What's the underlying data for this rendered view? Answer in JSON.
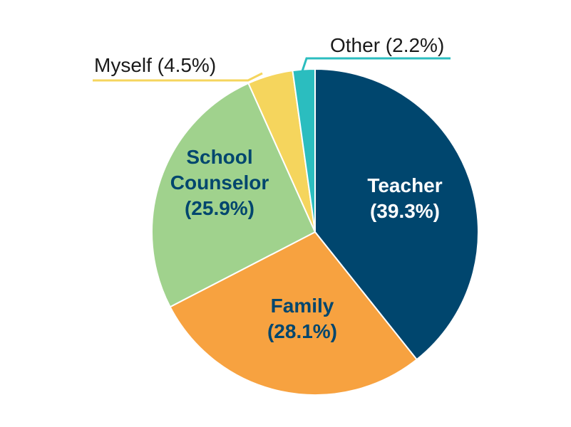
{
  "chart_data": {
    "type": "pie",
    "start_angle_deg": 0,
    "direction": "clockwise",
    "slices": [
      {
        "name": "Teacher",
        "value": 39.3,
        "color": "#00466E",
        "label_lines": [
          "Teacher",
          "(39.3%)"
        ],
        "label_color": "#FFFFFF"
      },
      {
        "name": "Family",
        "value": 28.1,
        "color": "#F7A240",
        "label_lines": [
          "Family",
          "(28.1%)"
        ],
        "label_color": "#00466E"
      },
      {
        "name": "School Counselor",
        "value": 25.9,
        "color": "#A0D28D",
        "label_lines": [
          "School",
          "Counselor",
          "(25.9%)"
        ],
        "label_color": "#00466E"
      },
      {
        "name": "Myself",
        "value": 4.5,
        "color": "#F5D55D",
        "label_lines": [
          "Myself (4.5%)"
        ],
        "label_color": "#1A1A1A"
      },
      {
        "name": "Other",
        "value": 2.2,
        "color": "#2BBDBF",
        "label_lines": [
          "Other (2.2%)"
        ],
        "label_color": "#1A1A1A"
      }
    ]
  }
}
